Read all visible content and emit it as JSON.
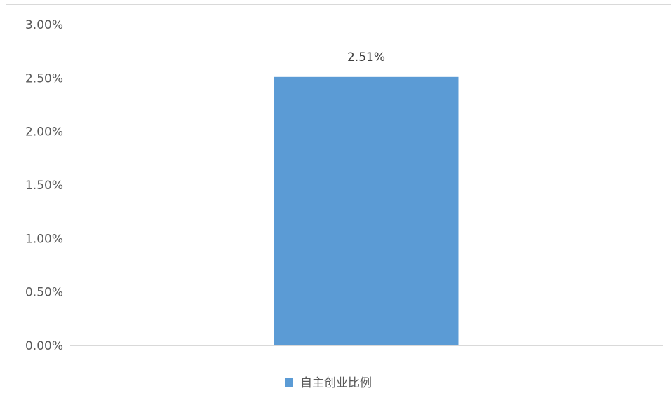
{
  "chart_data": {
    "type": "bar",
    "categories": [
      ""
    ],
    "series": [
      {
        "name": "自主创业比例",
        "values": [
          2.51
        ],
        "color": "#5b9bd5"
      }
    ],
    "data_labels": [
      "2.51%"
    ],
    "yticks": [
      "0.00%",
      "0.50%",
      "1.00%",
      "1.50%",
      "2.00%",
      "2.50%",
      "3.00%"
    ],
    "ytick_values": [
      0,
      0.5,
      1.0,
      1.5,
      2.0,
      2.5,
      3.0
    ],
    "ylim": [
      0,
      3.0
    ],
    "grid": false,
    "legend_position": "bottom"
  }
}
